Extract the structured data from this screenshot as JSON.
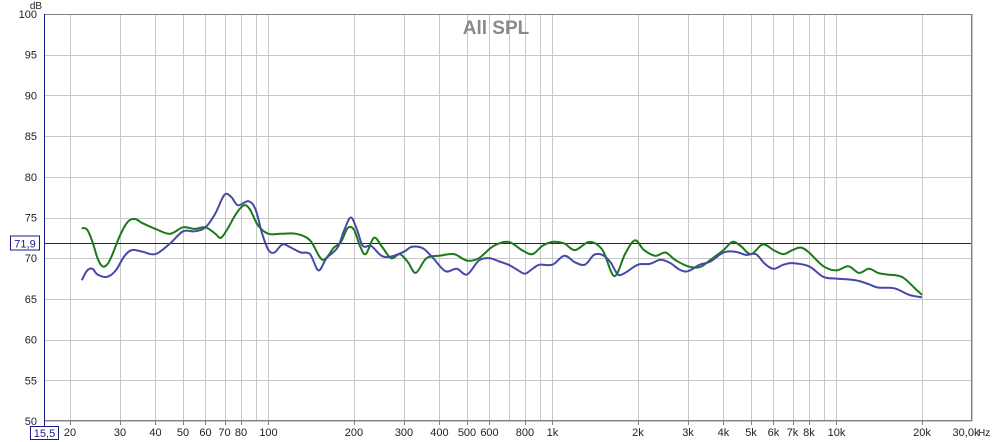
{
  "chart_data": {
    "type": "line",
    "title": "All SPL",
    "x_unit_label": "Hz",
    "y_unit_label": "dB",
    "xscale": "log",
    "xlim": [
      16.2,
      30000
    ],
    "ylim": [
      50,
      100
    ],
    "grid": true,
    "y_ticks": [
      50,
      55,
      60,
      65,
      70,
      75,
      80,
      85,
      90,
      95,
      100
    ],
    "x_ticks": [
      {
        "value": 20,
        "label": "20"
      },
      {
        "value": 30,
        "label": "30"
      },
      {
        "value": 40,
        "label": "40"
      },
      {
        "value": 50,
        "label": "50"
      },
      {
        "value": 60,
        "label": "60"
      },
      {
        "value": 70,
        "label": "70"
      },
      {
        "value": 80,
        "label": "80"
      },
      {
        "value": 100,
        "label": "100"
      },
      {
        "value": 200,
        "label": "200"
      },
      {
        "value": 300,
        "label": "300"
      },
      {
        "value": 400,
        "label": "400"
      },
      {
        "value": 500,
        "label": "500"
      },
      {
        "value": 600,
        "label": "600"
      },
      {
        "value": 800,
        "label": "800"
      },
      {
        "value": 1000,
        "label": "1k"
      },
      {
        "value": 2000,
        "label": "2k"
      },
      {
        "value": 3000,
        "label": "3k"
      },
      {
        "value": 4000,
        "label": "4k"
      },
      {
        "value": 5000,
        "label": "5k"
      },
      {
        "value": 6000,
        "label": "6k"
      },
      {
        "value": 7000,
        "label": "7k"
      },
      {
        "value": 8000,
        "label": "8k"
      },
      {
        "value": 10000,
        "label": "10k"
      },
      {
        "value": 20000,
        "label": "20k"
      }
    ],
    "x_end_label": "30,0k",
    "x_readout": "15,5",
    "cursor": {
      "y": 71.9,
      "label": "71,9"
    },
    "colors": {
      "cursor": "#1b1b8c",
      "grid": "#c8c8c8",
      "axis": "#808080"
    },
    "series": [
      {
        "color": "#1a7a1a",
        "points": [
          [
            22,
            73.7
          ],
          [
            23,
            73.5
          ],
          [
            24,
            72
          ],
          [
            25,
            70
          ],
          [
            26,
            69
          ],
          [
            27,
            69.2
          ],
          [
            28,
            70.2
          ],
          [
            30,
            72.8
          ],
          [
            32,
            74.5
          ],
          [
            34,
            74.8
          ],
          [
            36,
            74.3
          ],
          [
            40,
            73.6
          ],
          [
            45,
            73
          ],
          [
            50,
            73.8
          ],
          [
            55,
            73.6
          ],
          [
            60,
            73.8
          ],
          [
            65,
            73
          ],
          [
            68,
            72.5
          ],
          [
            72,
            73.7
          ],
          [
            77,
            75.5
          ],
          [
            82,
            76.5
          ],
          [
            86,
            76
          ],
          [
            92,
            74
          ],
          [
            100,
            73
          ],
          [
            110,
            73
          ],
          [
            125,
            73
          ],
          [
            140,
            72.2
          ],
          [
            155,
            69.8
          ],
          [
            170,
            71.3
          ],
          [
            180,
            72
          ],
          [
            190,
            73.7
          ],
          [
            200,
            73.5
          ],
          [
            210,
            71.5
          ],
          [
            220,
            70.5
          ],
          [
            235,
            72.5
          ],
          [
            250,
            71.5
          ],
          [
            270,
            70
          ],
          [
            290,
            70.5
          ],
          [
            310,
            69.5
          ],
          [
            330,
            68.2
          ],
          [
            360,
            70
          ],
          [
            400,
            70.3
          ],
          [
            450,
            70.5
          ],
          [
            500,
            69.7
          ],
          [
            550,
            70
          ],
          [
            620,
            71.5
          ],
          [
            700,
            72
          ],
          [
            780,
            71
          ],
          [
            850,
            70.5
          ],
          [
            920,
            71.5
          ],
          [
            1000,
            72
          ],
          [
            1100,
            71.8
          ],
          [
            1200,
            71
          ],
          [
            1350,
            72
          ],
          [
            1500,
            71
          ],
          [
            1650,
            67.8
          ],
          [
            1800,
            70.5
          ],
          [
            1950,
            72.2
          ],
          [
            2100,
            71
          ],
          [
            2300,
            70.3
          ],
          [
            2500,
            70.7
          ],
          [
            2700,
            69.8
          ],
          [
            3000,
            69
          ],
          [
            3300,
            68.9
          ],
          [
            3600,
            69.8
          ],
          [
            4000,
            71
          ],
          [
            4300,
            72
          ],
          [
            4600,
            71.5
          ],
          [
            5000,
            70.5
          ],
          [
            5500,
            71.7
          ],
          [
            6000,
            71
          ],
          [
            6500,
            70.5
          ],
          [
            7000,
            71
          ],
          [
            7500,
            71.3
          ],
          [
            8000,
            70.7
          ],
          [
            9000,
            69
          ],
          [
            10000,
            68.5
          ],
          [
            11000,
            69
          ],
          [
            12000,
            68.2
          ],
          [
            13000,
            68.7
          ],
          [
            14000,
            68.2
          ],
          [
            15000,
            68
          ],
          [
            17000,
            67.7
          ],
          [
            19000,
            66.2
          ],
          [
            20000,
            65.5
          ]
        ]
      },
      {
        "color": "#4848a8",
        "points": [
          [
            22,
            67.3
          ],
          [
            23,
            68.5
          ],
          [
            24,
            68.7
          ],
          [
            25,
            68
          ],
          [
            27,
            67.7
          ],
          [
            29,
            68.5
          ],
          [
            31,
            70.2
          ],
          [
            33,
            71
          ],
          [
            36,
            70.8
          ],
          [
            40,
            70.5
          ],
          [
            45,
            71.8
          ],
          [
            50,
            73.3
          ],
          [
            55,
            73.3
          ],
          [
            60,
            73.8
          ],
          [
            65,
            75.5
          ],
          [
            70,
            77.8
          ],
          [
            74,
            77.5
          ],
          [
            78,
            76.5
          ],
          [
            85,
            77
          ],
          [
            90,
            76
          ],
          [
            95,
            73
          ],
          [
            100,
            71
          ],
          [
            105,
            70.7
          ],
          [
            112,
            71.7
          ],
          [
            120,
            71.3
          ],
          [
            130,
            70.7
          ],
          [
            140,
            70.5
          ],
          [
            150,
            68.5
          ],
          [
            160,
            70
          ],
          [
            175,
            71.3
          ],
          [
            185,
            73.5
          ],
          [
            195,
            75
          ],
          [
            205,
            73.5
          ],
          [
            215,
            71.5
          ],
          [
            230,
            71.5
          ],
          [
            250,
            70.3
          ],
          [
            270,
            70.2
          ],
          [
            300,
            70.8
          ],
          [
            320,
            71.4
          ],
          [
            350,
            71.2
          ],
          [
            380,
            70
          ],
          [
            420,
            68.4
          ],
          [
            460,
            68.7
          ],
          [
            500,
            68
          ],
          [
            550,
            69.7
          ],
          [
            600,
            70
          ],
          [
            650,
            69.6
          ],
          [
            700,
            69.2
          ],
          [
            750,
            68.6
          ],
          [
            800,
            68.1
          ],
          [
            850,
            68.7
          ],
          [
            900,
            69.2
          ],
          [
            1000,
            69.2
          ],
          [
            1100,
            70.3
          ],
          [
            1200,
            69.5
          ],
          [
            1300,
            69.2
          ],
          [
            1400,
            70.4
          ],
          [
            1500,
            70.4
          ],
          [
            1600,
            69.5
          ],
          [
            1700,
            68
          ],
          [
            1800,
            68.2
          ],
          [
            2000,
            69.2
          ],
          [
            2200,
            69.3
          ],
          [
            2400,
            69.8
          ],
          [
            2600,
            69.4
          ],
          [
            2800,
            68.6
          ],
          [
            3000,
            68.4
          ],
          [
            3300,
            69.2
          ],
          [
            3600,
            69.6
          ],
          [
            4000,
            70.7
          ],
          [
            4400,
            70.8
          ],
          [
            4800,
            70.4
          ],
          [
            5200,
            70.5
          ],
          [
            5600,
            69.3
          ],
          [
            6000,
            68.7
          ],
          [
            6500,
            69.2
          ],
          [
            7000,
            69.4
          ],
          [
            8000,
            69
          ],
          [
            9000,
            67.7
          ],
          [
            10000,
            67.5
          ],
          [
            11000,
            67.4
          ],
          [
            12000,
            67.2
          ],
          [
            13000,
            66.8
          ],
          [
            14000,
            66.4
          ],
          [
            16000,
            66.3
          ],
          [
            18000,
            65.5
          ],
          [
            20000,
            65.2
          ]
        ]
      }
    ]
  }
}
